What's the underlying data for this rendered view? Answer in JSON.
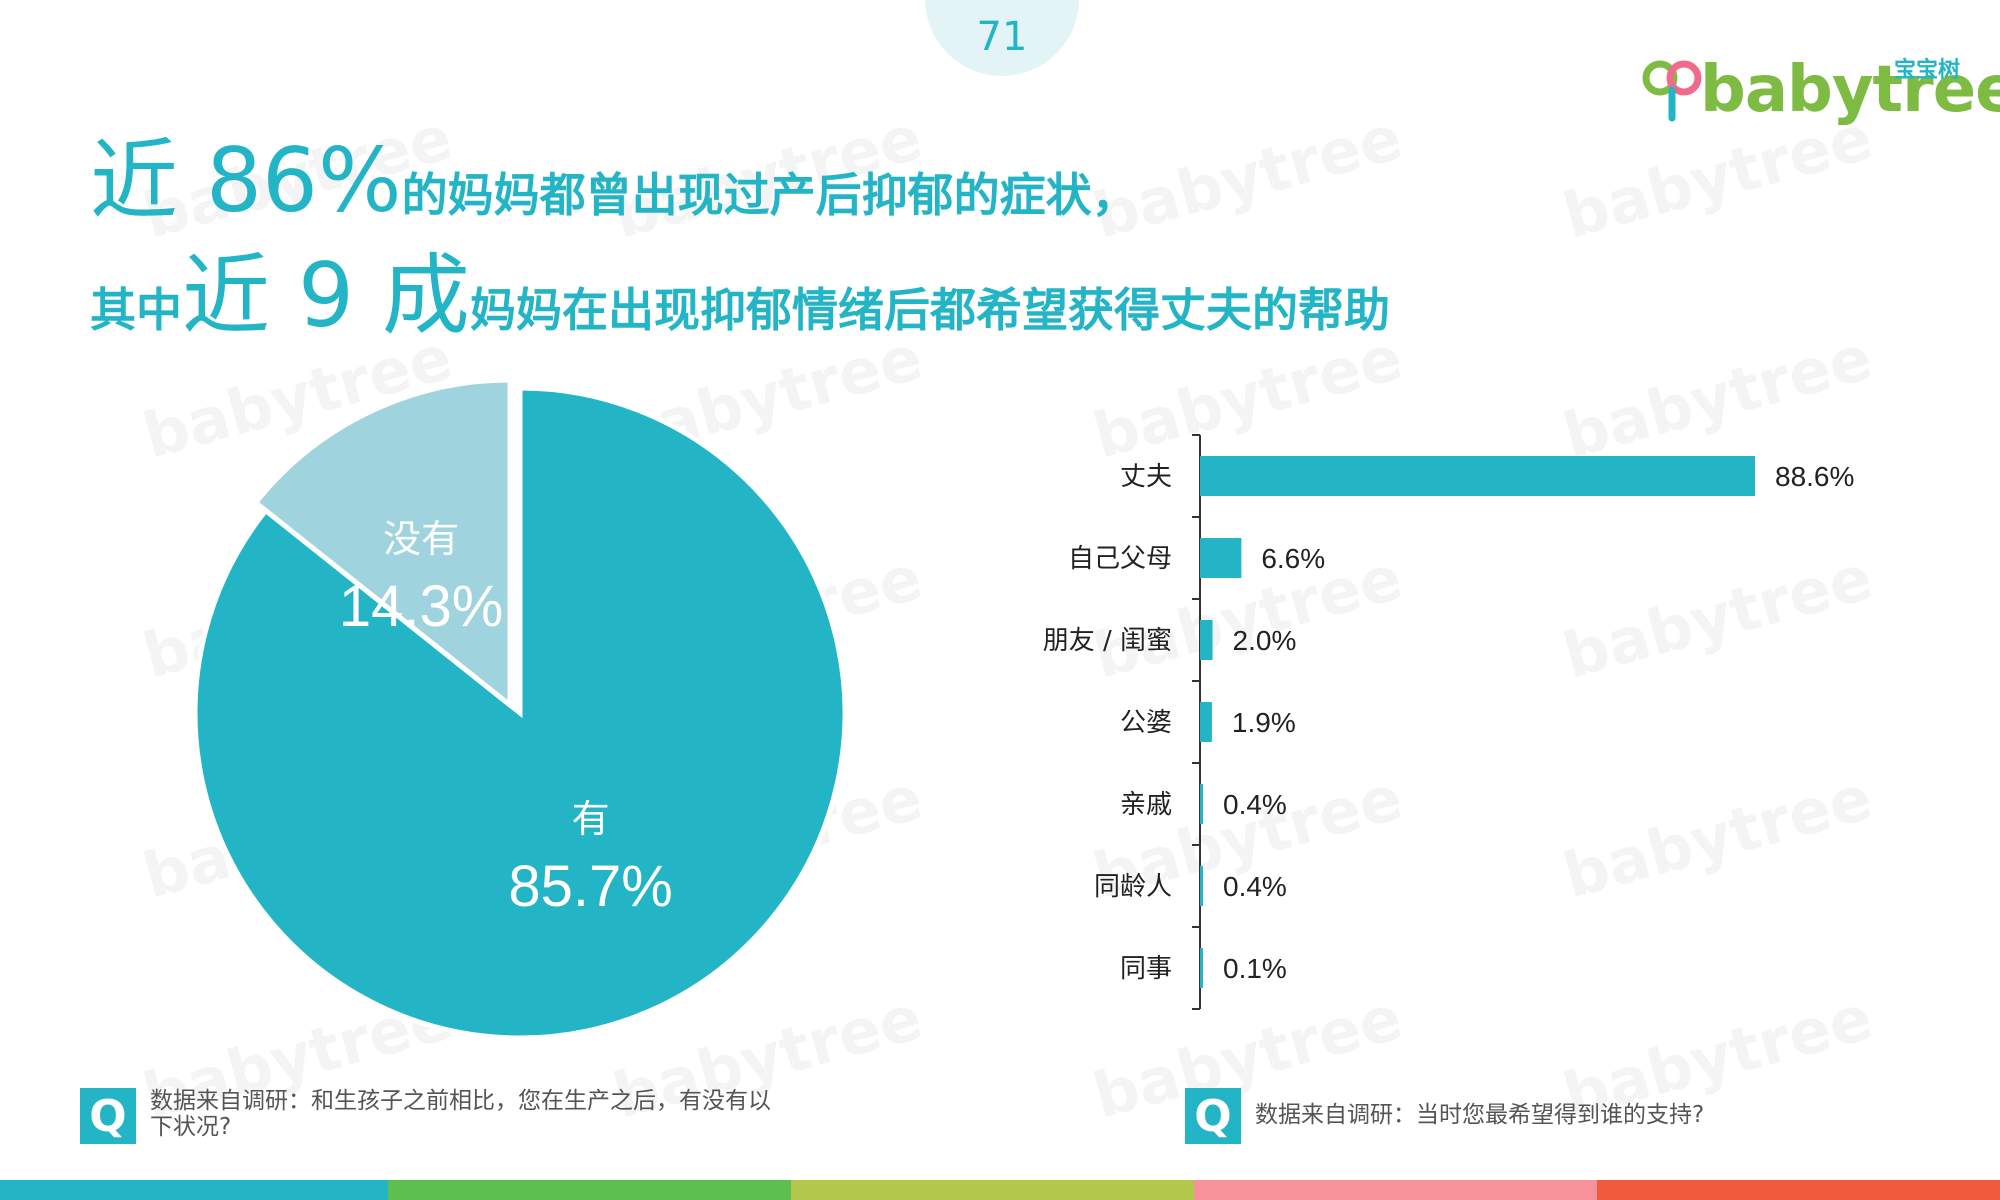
{
  "page_number": "71",
  "logo": {
    "cn": "宝宝树",
    "word": "babytree"
  },
  "title": {
    "line1_big": "近 86%",
    "line1_small": "的妈妈都曾出现过产后抑郁的症状，",
    "line2_lead": "其中",
    "line2_big": "近 9 成",
    "line2_small": "妈妈在出现抑郁情绪后都希望获得丈夫的帮助"
  },
  "watermark_text": "babytree",
  "chart_data": [
    {
      "type": "pie",
      "categories": [
        "有",
        "没有"
      ],
      "values": [
        85.7,
        14.3
      ],
      "labels": [
        "85.7%",
        "14.3%"
      ],
      "colors": [
        "#23b5c6",
        "#9fd4de"
      ]
    },
    {
      "type": "bar",
      "orientation": "horizontal",
      "categories": [
        "丈夫",
        "自己父母",
        "朋友 / 闺蜜",
        "公婆",
        "亲戚",
        "同龄人",
        "同事"
      ],
      "values": [
        88.6,
        6.6,
        2.0,
        1.9,
        0.4,
        0.4,
        0.1
      ],
      "labels": [
        "88.6%",
        "6.6%",
        "2.0%",
        "1.9%",
        "0.4%",
        "0.4%",
        "0.1%"
      ],
      "color": "#23b5c6"
    }
  ],
  "footnotes": {
    "left_badge": "Q",
    "left": "数据来自调研：和生孩子之前相比，您在生产之后，有没有以下状况?",
    "right_badge": "Q",
    "right": "数据来自调研：当时您最希望得到谁的支持?"
  },
  "strip_colors": [
    "#23b5c6",
    "#5cbf50",
    "#b3c84a",
    "#f7929a",
    "#f25a3c"
  ]
}
